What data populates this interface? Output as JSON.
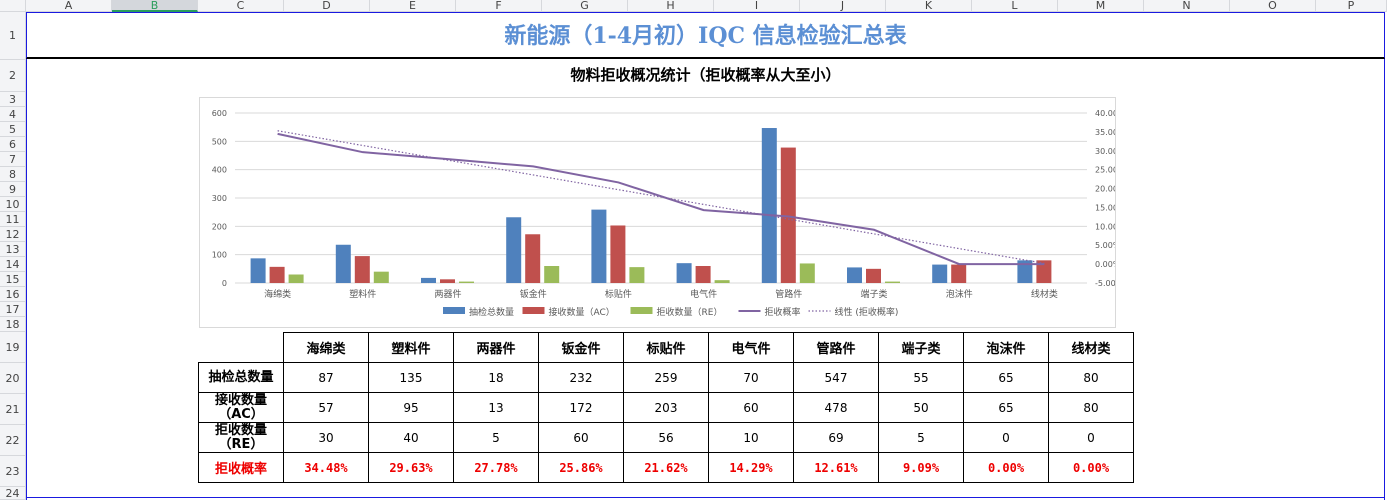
{
  "columns": [
    "A",
    "B",
    "C",
    "D",
    "E",
    "F",
    "G",
    "H",
    "I",
    "J",
    "K",
    "L",
    "M",
    "N",
    "O",
    "P"
  ],
  "rows": [
    "1",
    "2",
    "3",
    "4",
    "5",
    "6",
    "7",
    "8",
    "9",
    "10",
    "11",
    "12",
    "13",
    "14",
    "15",
    "16",
    "17",
    "18",
    "19",
    "20",
    "21",
    "22",
    "23",
    "24"
  ],
  "title": "新能源（1-4月初）IQC 信息检验汇总表",
  "subtitle": "物料拒收概况统计（拒收概率从大至小）",
  "colors": {
    "total": "#4f81bd",
    "ac": "#c0504d",
    "re": "#9bbb59",
    "rate": "#8064a2"
  },
  "chart_data": {
    "type": "bar",
    "categories": [
      "海绵类",
      "塑料件",
      "两器件",
      "钣金件",
      "标贴件",
      "电气件",
      "管路件",
      "端子类",
      "泡沫件",
      "线材类"
    ],
    "series": [
      {
        "name": "抽检总数量",
        "type": "bar",
        "axis": "left",
        "values": [
          87,
          135,
          18,
          232,
          259,
          70,
          547,
          55,
          65,
          80
        ]
      },
      {
        "name": "接收数量（AC）",
        "type": "bar",
        "axis": "left",
        "values": [
          57,
          95,
          13,
          172,
          203,
          60,
          478,
          50,
          65,
          80
        ]
      },
      {
        "name": "拒收数量（RE）",
        "type": "bar",
        "axis": "left",
        "values": [
          30,
          40,
          5,
          60,
          56,
          10,
          69,
          5,
          0,
          0
        ]
      },
      {
        "name": "拒收概率",
        "type": "line",
        "axis": "right",
        "values": [
          34.48,
          29.63,
          27.78,
          25.86,
          21.62,
          14.29,
          12.61,
          9.09,
          0,
          0
        ]
      },
      {
        "name": "线性 (拒收概率)",
        "type": "trendline",
        "axis": "right",
        "values": [
          35.3,
          31.4,
          27.5,
          23.6,
          19.7,
          15.8,
          11.9,
          8.0,
          4.1,
          0.2
        ]
      }
    ],
    "left_ticks": [
      "0",
      "100",
      "200",
      "300",
      "400",
      "500",
      "600"
    ],
    "right_ticks": [
      "-5.00%",
      "0.00%",
      "5.00%",
      "10.00%",
      "15.00%",
      "20.00%",
      "25.00%",
      "30.00%",
      "35.00%",
      "40.00%"
    ],
    "ylim": [
      0,
      600
    ],
    "y2lim": [
      -5,
      40
    ],
    "legend": "bottom",
    "grid": true
  },
  "table": {
    "headers": [
      "海绵类",
      "塑料件",
      "两器件",
      "钣金件",
      "标贴件",
      "电气件",
      "管路件",
      "端子类",
      "泡沫件",
      "线材类"
    ],
    "rows": [
      {
        "label": "抽检总数量",
        "values": [
          "87",
          "135",
          "18",
          "232",
          "259",
          "70",
          "547",
          "55",
          "65",
          "80"
        ]
      },
      {
        "label": "接收数量\n（AC）",
        "values": [
          "57",
          "95",
          "13",
          "172",
          "203",
          "60",
          "478",
          "50",
          "65",
          "80"
        ]
      },
      {
        "label": "拒收数量\n（RE）",
        "values": [
          "30",
          "40",
          "5",
          "60",
          "56",
          "10",
          "69",
          "5",
          "0",
          "0"
        ]
      },
      {
        "label": "拒收概率",
        "values": [
          "34.48%",
          "29.63%",
          "27.78%",
          "25.86%",
          "21.62%",
          "14.29%",
          "12.61%",
          "9.09%",
          "0.00%",
          "0.00%"
        ]
      }
    ]
  }
}
